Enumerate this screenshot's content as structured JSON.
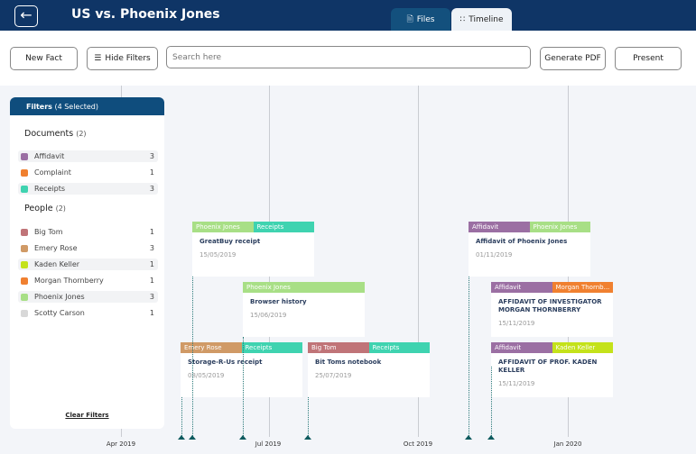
{
  "header": {
    "title": "US vs. Phoenix Jones",
    "tabs": [
      {
        "label": "Files",
        "icon": "file-icon"
      },
      {
        "label": "Timeline",
        "icon": "timeline-icon",
        "active": true
      }
    ]
  },
  "toolbar": {
    "new_fact": "New Fact",
    "hide_filters": "Hide Filters",
    "search_placeholder": "Search here",
    "search_value": "",
    "generate_pdf": "Generate PDF",
    "present": "Present"
  },
  "axis": [
    "Apr 2019",
    "Jul 2019",
    "Oct 2019",
    "Jan 2020"
  ],
  "filters": {
    "title": "Filters",
    "selected": "(4 Selected)",
    "clear": "Clear Filters",
    "documents": {
      "label": "Documents",
      "count": "(2)",
      "items": [
        {
          "label": "Affidavit",
          "count": "3",
          "color": "#9b6fa3",
          "selected": true
        },
        {
          "label": "Complaint",
          "count": "1",
          "color": "#f08030",
          "selected": false
        },
        {
          "label": "Receipts",
          "count": "3",
          "color": "#3fd3b0",
          "selected": true
        }
      ]
    },
    "people": {
      "label": "People",
      "count": "(2)",
      "items": [
        {
          "label": "Big Tom",
          "count": "1",
          "color": "#c07478",
          "selected": false
        },
        {
          "label": "Emery Rose",
          "count": "3",
          "color": "#d09a66",
          "selected": false
        },
        {
          "label": "Kaden Keller",
          "count": "1",
          "color": "#c4e21a",
          "selected": true
        },
        {
          "label": "Morgan Thornberry",
          "count": "1",
          "color": "#f08030",
          "selected": false
        },
        {
          "label": "Phoenix Jones",
          "count": "3",
          "color": "#a8df86",
          "selected": true
        },
        {
          "label": "Scotty Carson",
          "count": "1",
          "color": "#d8d8d8",
          "selected": false
        }
      ]
    }
  },
  "cards": [
    {
      "tags": [
        {
          "label": "Phoenix Jones",
          "color": "#a8df86"
        },
        {
          "label": "Receipts",
          "color": "#3fd3b0"
        }
      ],
      "title": "GreatBuy receipt",
      "date": "15/05/2019"
    },
    {
      "tags": [
        {
          "label": "Phoenix Jones",
          "color": "#a8df86"
        }
      ],
      "title": "Browser history",
      "date": "15/06/2019"
    },
    {
      "tags": [
        {
          "label": "Emery Rose",
          "color": "#d09a66"
        },
        {
          "label": "Receipts",
          "color": "#3fd3b0"
        }
      ],
      "title": "Storage-R-Us receipt",
      "date": "08/05/2019"
    },
    {
      "tags": [
        {
          "label": "Big Tom",
          "color": "#c07478"
        },
        {
          "label": "Receipts",
          "color": "#3fd3b0"
        }
      ],
      "title": "Bit Toms notebook",
      "date": "25/07/2019"
    },
    {
      "tags": [
        {
          "label": "Affidavit",
          "color": "#9b6fa3"
        },
        {
          "label": "Phoenix Jones",
          "color": "#a8df86"
        }
      ],
      "title": "Affidavit of Phoenix Jones",
      "date": "01/11/2019"
    },
    {
      "tags": [
        {
          "label": "Affidavit",
          "color": "#9b6fa3"
        },
        {
          "label": "Morgan Thornb...",
          "color": "#f08030"
        }
      ],
      "title": "AFFIDAVIT OF INVESTIGATOR MORGAN THORNBERRY",
      "date": "15/11/2019"
    },
    {
      "tags": [
        {
          "label": "Affidavit",
          "color": "#9b6fa3"
        },
        {
          "label": "Kaden Keller",
          "color": "#c4e21a"
        }
      ],
      "title": "AFFIDAVIT OF PROF. KADEN KELLER",
      "date": "15/11/2019"
    }
  ]
}
